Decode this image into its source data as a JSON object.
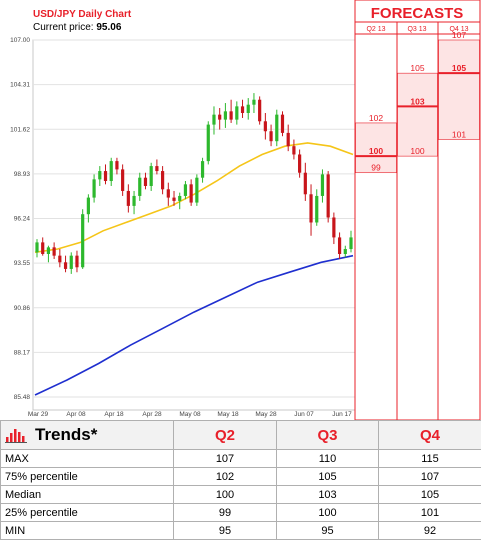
{
  "header": {
    "title": "USD/JPY Daily Chart",
    "price_label": "Current price:",
    "price_value": "95.06"
  },
  "forecast_panel": {
    "title": "FORECASTS",
    "quarters": [
      "Q2 13",
      "Q3 13",
      "Q4 13"
    ],
    "labels": [
      {
        "q": 0,
        "value": 102,
        "text": "102",
        "bold": false
      },
      {
        "q": 0,
        "value": 100,
        "text": "100",
        "bold": true
      },
      {
        "q": 0,
        "value": 99,
        "text": "99",
        "bold": false
      },
      {
        "q": 1,
        "value": 105,
        "text": "105",
        "bold": false
      },
      {
        "q": 1,
        "value": 103,
        "text": "103",
        "bold": true
      },
      {
        "q": 1,
        "value": 100,
        "text": "100",
        "bold": false
      },
      {
        "q": 2,
        "value": 107,
        "text": "107",
        "bold": false
      },
      {
        "q": 2,
        "value": 105,
        "text": "105",
        "bold": true
      },
      {
        "q": 2,
        "value": 101,
        "text": "101",
        "bold": false
      }
    ]
  },
  "table": {
    "heading": "Trends*",
    "columns": [
      "Q2",
      "Q3",
      "Q4"
    ],
    "rows": [
      {
        "label": "MAX",
        "values": [
          "107",
          "110",
          "115"
        ]
      },
      {
        "label": "75% percentile",
        "values": [
          "102",
          "105",
          "107"
        ]
      },
      {
        "label": "Median",
        "values": [
          "100",
          "103",
          "105"
        ]
      },
      {
        "label": "25% percentile",
        "values": [
          "99",
          "100",
          "101"
        ]
      },
      {
        "label": "MIN",
        "values": [
          "95",
          "95",
          "92"
        ]
      }
    ]
  },
  "colors": {
    "accent": "#e8202a",
    "up_candle": "#2db82d",
    "down_candle": "#c8151b",
    "ma_short": "#f5c518",
    "ma_long": "#1f2fcf",
    "forecast_fill": "#fde4e4"
  },
  "chart_data": {
    "type": "candlestick",
    "y_ticks": [
      "107.00",
      "104.31",
      "101.62",
      "98.93",
      "96.24",
      "93.55",
      "90.86",
      "88.17",
      "85.48"
    ],
    "ylim": [
      85.48,
      107.0
    ],
    "x_ticks": [
      "Mar 29",
      "Apr 08",
      "Apr 18",
      "Apr 28",
      "May 08",
      "May 18",
      "May 28",
      "Jun 07",
      "Jun 17"
    ],
    "candles": [
      [
        94.2,
        95.0,
        93.9,
        94.8
      ],
      [
        94.8,
        95.1,
        94.0,
        94.1
      ],
      [
        94.1,
        94.6,
        93.6,
        94.5
      ],
      [
        94.5,
        94.8,
        93.8,
        94.0
      ],
      [
        94.0,
        94.4,
        93.3,
        93.6
      ],
      [
        93.6,
        94.0,
        93.0,
        93.2
      ],
      [
        93.2,
        94.2,
        92.9,
        94.0
      ],
      [
        94.0,
        94.3,
        93.0,
        93.3
      ],
      [
        93.3,
        96.8,
        93.2,
        96.5
      ],
      [
        96.5,
        97.7,
        96.0,
        97.5
      ],
      [
        97.5,
        98.9,
        97.2,
        98.6
      ],
      [
        98.6,
        99.4,
        98.2,
        99.1
      ],
      [
        99.1,
        99.5,
        98.3,
        98.5
      ],
      [
        98.5,
        99.9,
        98.2,
        99.7
      ],
      [
        99.7,
        99.9,
        98.9,
        99.2
      ],
      [
        99.2,
        99.5,
        97.6,
        97.9
      ],
      [
        97.9,
        98.3,
        96.6,
        97.0
      ],
      [
        97.0,
        97.9,
        96.5,
        97.6
      ],
      [
        97.6,
        99.0,
        97.3,
        98.7
      ],
      [
        98.7,
        99.0,
        98.0,
        98.2
      ],
      [
        98.2,
        99.6,
        97.9,
        99.4
      ],
      [
        99.4,
        99.8,
        98.9,
        99.1
      ],
      [
        99.1,
        99.4,
        97.7,
        98.0
      ],
      [
        98.0,
        98.4,
        97.0,
        97.5
      ],
      [
        97.5,
        97.9,
        97.0,
        97.3
      ],
      [
        97.3,
        97.8,
        96.8,
        97.6
      ],
      [
        97.6,
        98.5,
        97.4,
        98.3
      ],
      [
        98.3,
        98.6,
        97.0,
        97.2
      ],
      [
        97.2,
        98.9,
        97.0,
        98.7
      ],
      [
        98.7,
        99.9,
        98.4,
        99.7
      ],
      [
        99.7,
        102.1,
        99.5,
        101.9
      ],
      [
        101.9,
        103.0,
        101.3,
        102.5
      ],
      [
        102.5,
        102.9,
        101.6,
        102.2
      ],
      [
        102.2,
        103.2,
        101.7,
        102.7
      ],
      [
        102.7,
        103.4,
        102.0,
        102.2
      ],
      [
        102.2,
        103.3,
        101.9,
        103.0
      ],
      [
        103.0,
        103.4,
        102.3,
        102.6
      ],
      [
        102.6,
        103.5,
        102.2,
        103.1
      ],
      [
        103.1,
        103.8,
        102.6,
        103.4
      ],
      [
        103.4,
        103.6,
        101.9,
        102.1
      ],
      [
        102.1,
        102.6,
        101.0,
        101.5
      ],
      [
        101.5,
        101.9,
        100.6,
        100.9
      ],
      [
        100.9,
        102.8,
        100.6,
        102.5
      ],
      [
        102.5,
        102.7,
        101.2,
        101.4
      ],
      [
        101.4,
        101.9,
        100.3,
        100.6
      ],
      [
        100.6,
        101.0,
        99.8,
        100.1
      ],
      [
        100.1,
        100.4,
        98.7,
        99.0
      ],
      [
        99.0,
        99.6,
        97.3,
        97.7
      ],
      [
        97.7,
        98.3,
        95.2,
        96.0
      ],
      [
        96.0,
        98.0,
        95.8,
        97.6
      ],
      [
        97.6,
        99.2,
        97.2,
        98.9
      ],
      [
        98.9,
        99.1,
        96.0,
        96.3
      ],
      [
        96.3,
        96.6,
        94.7,
        95.1
      ],
      [
        95.1,
        95.4,
        93.8,
        94.1
      ],
      [
        94.1,
        94.6,
        93.9,
        94.4
      ],
      [
        94.4,
        95.5,
        94.2,
        95.1
      ]
    ],
    "ma_short": [
      94.2,
      94.4,
      94.8,
      95.5,
      96.0,
      96.5,
      97.0,
      97.7,
      98.5,
      99.4,
      100.1,
      100.6,
      100.8,
      100.6,
      100.1
    ],
    "ma_long": [
      85.6,
      86.5,
      87.5,
      88.6,
      89.6,
      90.6,
      91.5,
      92.4,
      93.0,
      93.6,
      94.0
    ],
    "forecast_ranges": [
      {
        "quarter": "Q2 13",
        "p25": 99,
        "median": 100,
        "p75": 102
      },
      {
        "quarter": "Q3 13",
        "p25": 100,
        "median": 103,
        "p75": 105
      },
      {
        "quarter": "Q4 13",
        "p25": 101,
        "median": 105,
        "p75": 107
      }
    ]
  }
}
